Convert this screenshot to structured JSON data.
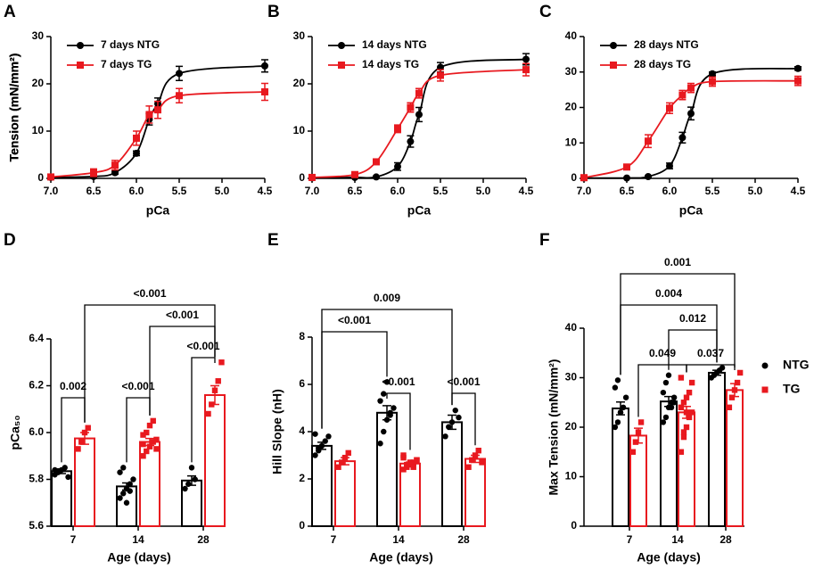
{
  "chart_data": [
    {
      "type": "line",
      "panel": "A",
      "xlabel": "pCa",
      "ylabel": "Tension (mN/mm²)",
      "x": [
        7.0,
        6.5,
        6.25,
        6.0,
        5.85,
        5.75,
        5.5,
        4.5
      ],
      "xlim": [
        7.0,
        4.5
      ],
      "xticks": [
        {
          "value": 7,
          "label": "7.0"
        },
        6.5,
        {
          "value": 6,
          "label": "6.0"
        },
        5.5,
        {
          "value": 5,
          "label": "5.0"
        },
        4.5
      ],
      "ylim": [
        0,
        30
      ],
      "yticks": [
        0,
        10,
        20,
        30
      ],
      "legend": "upper left",
      "series": [
        {
          "name": "7 days NTG",
          "color": "#000000",
          "marker": "circle",
          "values": [
            0.2,
            0.4,
            1.2,
            5.3,
            12.5,
            15.8,
            22.2,
            23.8
          ],
          "errors": [
            0.1,
            0.2,
            0.3,
            0.5,
            1.2,
            1.2,
            1.5,
            1.3
          ]
        },
        {
          "name": "7 days TG",
          "color": "#e8191f",
          "marker": "square",
          "values": [
            0.3,
            1.2,
            2.8,
            8.5,
            13.5,
            14.5,
            17.5,
            18.3
          ],
          "errors": [
            0.2,
            0.8,
            1.0,
            1.5,
            1.8,
            1.8,
            1.5,
            1.8
          ]
        }
      ]
    },
    {
      "type": "line",
      "panel": "B",
      "xlabel": "pCa",
      "ylabel": "Tension (mN/mm²)",
      "x": [
        7.0,
        6.5,
        6.25,
        6.0,
        5.85,
        5.75,
        5.5,
        4.5
      ],
      "xlim": [
        7.0,
        4.5
      ],
      "xticks": [
        {
          "value": 7,
          "label": "7.0"
        },
        6.5,
        {
          "value": 6,
          "label": "6.0"
        },
        5.5,
        {
          "value": 5,
          "label": "5.0"
        },
        4.5
      ],
      "ylim": [
        0,
        30
      ],
      "yticks": [
        0,
        10,
        20,
        30
      ],
      "legend": "upper left",
      "series": [
        {
          "name": "14 days NTG",
          "color": "#000000",
          "marker": "circle",
          "values": [
            0.1,
            0.2,
            0.3,
            2.5,
            7.8,
            13.5,
            23.5,
            25.2
          ],
          "errors": [
            0.1,
            0.1,
            0.2,
            0.8,
            1.2,
            1.5,
            1.0,
            1.2
          ]
        },
        {
          "name": "14 days TG",
          "color": "#e8191f",
          "marker": "square",
          "values": [
            0.2,
            0.8,
            3.5,
            10.5,
            15.0,
            18.0,
            21.8,
            23.0
          ],
          "errors": [
            0.1,
            0.3,
            0.5,
            0.8,
            1.0,
            1.0,
            1.2,
            1.3
          ]
        }
      ]
    },
    {
      "type": "line",
      "panel": "C",
      "xlabel": "pCa",
      "ylabel": "Tension (mN/mm²)",
      "x": [
        7.0,
        6.5,
        6.25,
        6.0,
        5.85,
        5.75,
        5.5,
        4.5
      ],
      "xlim": [
        7.0,
        4.5
      ],
      "xticks": [
        {
          "value": 7,
          "label": "7.0"
        },
        6.5,
        {
          "value": 6,
          "label": "6.0"
        },
        5.5,
        {
          "value": 5,
          "label": "5.0"
        },
        4.5
      ],
      "ylim": [
        0,
        40
      ],
      "yticks": [
        0,
        10,
        20,
        30,
        40
      ],
      "legend": "upper left",
      "series": [
        {
          "name": "28 days NTG",
          "color": "#000000",
          "marker": "circle",
          "values": [
            0.1,
            0.1,
            0.5,
            3.5,
            11.5,
            18.3,
            29.5,
            31.0
          ],
          "errors": [
            0.1,
            0.1,
            0.2,
            0.8,
            1.5,
            1.8,
            0.5,
            0.5
          ]
        },
        {
          "name": "28 days TG",
          "color": "#e8191f",
          "marker": "square",
          "values": [
            0.2,
            3.2,
            10.5,
            19.8,
            23.5,
            25.5,
            27.3,
            27.5
          ],
          "errors": [
            0.1,
            0.5,
            1.8,
            1.5,
            1.3,
            1.3,
            1.3,
            1.3
          ]
        }
      ]
    },
    {
      "type": "bar",
      "panel": "D",
      "xlabel": "Age (days)",
      "ylabel": "pCa₅₀",
      "categories": [
        "7",
        "14",
        "28"
      ],
      "ylim": [
        5.6,
        6.4
      ],
      "yticks": [
        5.6,
        5.8,
        {
          "value": 6,
          "label": "6.0"
        },
        6.2,
        6.4
      ],
      "series": [
        {
          "color": "#000000",
          "marker": "circle",
          "values": [
            5.835,
            5.77,
            5.795
          ],
          "errors": [
            0.01,
            0.015,
            0.02
          ],
          "points": [
            [
              5.82,
              5.83,
              5.84,
              5.85,
              5.81,
              5.84
            ],
            [
              5.72,
              5.74,
              5.76,
              5.78,
              5.8,
              5.83,
              5.85,
              5.7,
              5.75
            ],
            [
              5.76,
              5.78,
              5.85,
              5.8
            ]
          ]
        },
        {
          "color": "#e8191f",
          "marker": "square",
          "values": [
            5.975,
            5.96,
            6.16
          ],
          "errors": [
            0.025,
            0.015,
            0.04
          ],
          "points": [
            [
              5.93,
              5.96,
              6.0,
              6.02
            ],
            [
              5.9,
              5.92,
              5.94,
              5.96,
              5.97,
              5.99,
              6.0,
              6.03,
              6.05,
              5.93,
              5.95
            ],
            [
              6.08,
              6.12,
              6.18,
              6.22,
              6.3
            ]
          ]
        }
      ],
      "comparisons": [
        {
          "label": "0.002",
          "a": [
            0,
            0
          ],
          "b": [
            0,
            1
          ]
        },
        {
          "label": "<0.001",
          "a": [
            1,
            0
          ],
          "b": [
            1,
            1
          ]
        },
        {
          "label": "<0.001",
          "a": [
            2,
            0
          ],
          "b": [
            2,
            1
          ]
        },
        {
          "label": "<0.001",
          "a": [
            1,
            1
          ],
          "b": [
            2,
            1
          ]
        },
        {
          "label": "<0.001",
          "a": [
            0,
            1
          ],
          "b": [
            2,
            1
          ]
        }
      ]
    },
    {
      "type": "bar",
      "panel": "E",
      "xlabel": "Age (days)",
      "ylabel": "Hill Slope (nH)",
      "categories": [
        "7",
        "14",
        "28"
      ],
      "ylim": [
        0,
        8
      ],
      "yticks": [
        0,
        2,
        4,
        6,
        8
      ],
      "series": [
        {
          "color": "#000000",
          "marker": "circle",
          "values": [
            3.4,
            4.8,
            4.4
          ],
          "errors": [
            0.15,
            0.3,
            0.3
          ],
          "points": [
            [
              3.0,
              3.2,
              3.4,
              3.6,
              3.8,
              3.9,
              3.3
            ],
            [
              3.5,
              4.0,
              4.5,
              4.8,
              5.0,
              5.3,
              5.6,
              6.1,
              4.7
            ],
            [
              3.8,
              4.2,
              4.4,
              4.9,
              4.6
            ]
          ]
        },
        {
          "color": "#e8191f",
          "marker": "square",
          "values": [
            2.75,
            2.65,
            2.85
          ],
          "errors": [
            0.15,
            0.06,
            0.15
          ],
          "points": [
            [
              2.5,
              2.7,
              2.9,
              3.1
            ],
            [
              2.4,
              2.5,
              2.6,
              2.7,
              2.8,
              2.9,
              2.6,
              2.7,
              2.5,
              2.8,
              3.0
            ],
            [
              2.5,
              2.8,
              3.0,
              3.2,
              2.7
            ]
          ]
        }
      ],
      "comparisons": [
        {
          "label": "<0.001",
          "a": [
            1,
            0
          ],
          "b": [
            1,
            1
          ]
        },
        {
          "label": "<0.001",
          "a": [
            2,
            0
          ],
          "b": [
            2,
            1
          ]
        },
        {
          "label": "<0.001",
          "a": [
            0,
            0
          ],
          "b": [
            1,
            0
          ]
        },
        {
          "label": "0.009",
          "a": [
            0,
            0
          ],
          "b": [
            2,
            0
          ]
        }
      ]
    },
    {
      "type": "bar",
      "panel": "F",
      "xlabel": "Age (days)",
      "ylabel": "Max Tension (mN/mm²)",
      "categories": [
        "7",
        "14",
        "28"
      ],
      "ylim": [
        0,
        40
      ],
      "yticks": [
        0,
        10,
        20,
        30,
        40
      ],
      "legend": "right",
      "series": [
        {
          "name": "NTG",
          "color": "#000000",
          "marker": "circle",
          "values": [
            23.8,
            25.2,
            31.0
          ],
          "errors": [
            1.3,
            1.0,
            0.5
          ],
          "points": [
            [
              20,
              21,
              23,
              24,
              26,
              28,
              29.5,
              23
            ],
            [
              21,
              22,
              24,
              25,
              26,
              27,
              29,
              30.5,
              24,
              25
            ],
            [
              30,
              30.5,
              31,
              31.5,
              32
            ]
          ]
        },
        {
          "name": "TG",
          "color": "#e8191f",
          "marker": "square",
          "values": [
            18.3,
            23.0,
            27.5
          ],
          "errors": [
            1.5,
            1.2,
            1.3
          ],
          "points": [
            [
              15,
              17,
              19,
              21
            ],
            [
              15,
              18,
              20,
              22,
              23,
              24,
              25,
              26,
              27,
              29,
              30,
              19,
              23
            ],
            [
              24,
              26,
              27.5,
              29,
              31
            ]
          ]
        }
      ],
      "comparisons": [
        {
          "label": "0.049",
          "a": [
            0,
            1
          ],
          "b": [
            1,
            1
          ]
        },
        {
          "label": "0.037",
          "a": [
            1,
            1
          ],
          "b": [
            2,
            1
          ]
        },
        {
          "label": "0.012",
          "a": [
            1,
            0
          ],
          "b": [
            2,
            0
          ]
        },
        {
          "label": "0.004",
          "a": [
            0,
            0
          ],
          "b": [
            2,
            0
          ]
        },
        {
          "label": "0.001",
          "a": [
            0,
            0
          ],
          "b": [
            2,
            1
          ]
        }
      ]
    }
  ]
}
